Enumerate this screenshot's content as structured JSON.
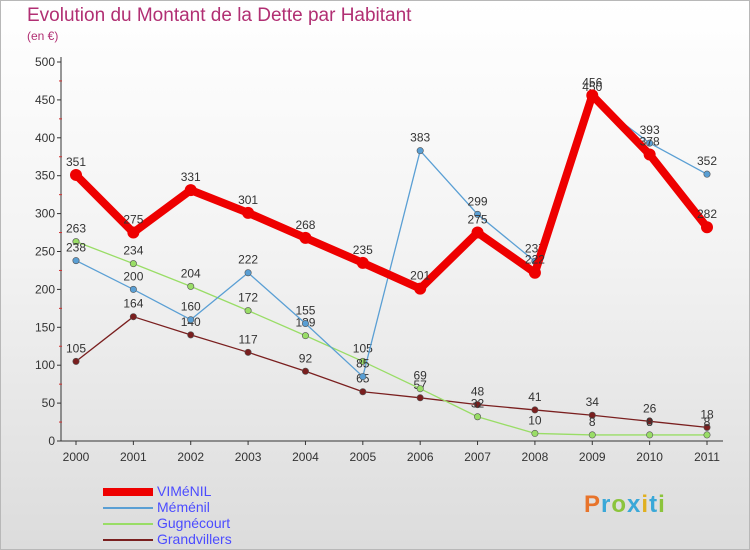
{
  "title": "Evolution du Montant de la Dette par Habitant",
  "subtitle": "(en €)",
  "logo": {
    "text": "Proxiti",
    "colors": [
      "#e8742b",
      "#3aa8d8",
      "#8cc43c",
      "#3aa8d8",
      "#e0b020",
      "#3aa8d8",
      "#8cc43c"
    ]
  },
  "chart_data": {
    "type": "line",
    "categories": [
      "2000",
      "2001",
      "2002",
      "2003",
      "2004",
      "2005",
      "2006",
      "2007",
      "2008",
      "2009",
      "2010",
      "2011"
    ],
    "ylim": [
      0,
      500
    ],
    "yticks": [
      0,
      50,
      100,
      150,
      200,
      250,
      300,
      350,
      400,
      450,
      500
    ],
    "grid": false,
    "legend_position": "bottom-left",
    "series": [
      {
        "name": "Grandvillers",
        "color": "#7a1f1f",
        "values": [
          105,
          164,
          140,
          117,
          92,
          65,
          57,
          48,
          41,
          34,
          26,
          18
        ],
        "labels": [
          "105",
          "164",
          "140",
          "117",
          "92",
          "65",
          "57",
          "48",
          "41",
          "34",
          "26",
          "18"
        ]
      },
      {
        "name": "Gugnécourt",
        "color": "#99dd66",
        "values": [
          263,
          234,
          204,
          172,
          139,
          105,
          69,
          32,
          10,
          8,
          8,
          8
        ],
        "labels": [
          "263",
          "234",
          "204",
          "172",
          "139",
          "105",
          "69",
          "32",
          "10",
          "8",
          "8",
          "8"
        ]
      },
      {
        "name": "Méménil",
        "color": "#5a9fd4",
        "values": [
          238,
          200,
          160,
          222,
          155,
          85,
          383,
          299,
          237,
          450,
          393,
          352
        ],
        "labels": [
          "238",
          "200",
          "160",
          "222",
          "155",
          "85",
          "383",
          "299",
          "237",
          "450",
          "393",
          "352"
        ]
      },
      {
        "name": "VIMéNIL",
        "color": "#ee0000",
        "values": [
          351,
          275,
          331,
          301,
          268,
          235,
          201,
          275,
          222,
          456,
          378,
          282
        ],
        "labels": [
          "351",
          "275",
          "331",
          "301",
          "268",
          "235",
          "201",
          "275",
          "222",
          "456",
          "378",
          "282"
        ]
      }
    ]
  },
  "legend": [
    {
      "label": "VIMéNIL",
      "color": "#ee0000",
      "thick": true
    },
    {
      "label": "Méménil",
      "color": "#5a9fd4",
      "thick": false
    },
    {
      "label": "Gugnécourt",
      "color": "#99dd66",
      "thick": false
    },
    {
      "label": "Grandvillers",
      "color": "#7a1f1f",
      "thick": false
    }
  ]
}
